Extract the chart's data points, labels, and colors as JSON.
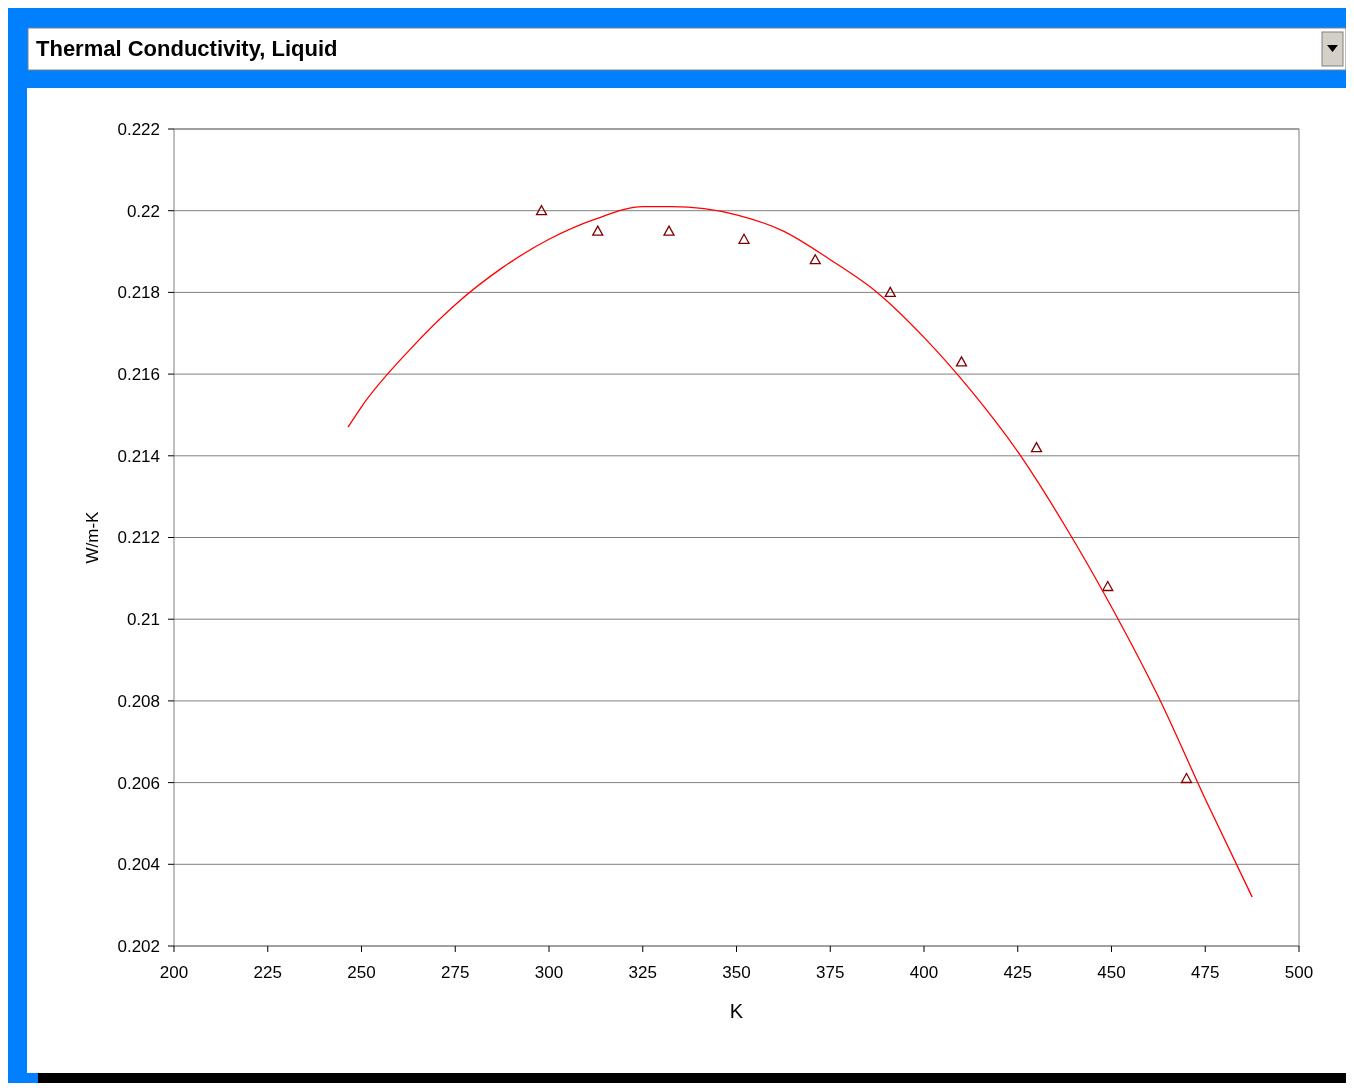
{
  "chart_data": {
    "type": "scatter",
    "title": "Thermal Conductivity, Liquid",
    "xlabel": "K",
    "ylabel": "W/m-K",
    "xlim": [
      200,
      500
    ],
    "xticks": [
      200,
      225,
      250,
      275,
      300,
      325,
      350,
      375,
      400,
      425,
      450,
      475,
      500
    ],
    "ylim": [
      0.202,
      0.222
    ],
    "yticks": [
      0.202,
      0.204,
      0.206,
      0.208,
      0.21,
      0.212,
      0.214,
      0.216,
      0.218,
      0.22,
      0.222
    ],
    "grid": "y",
    "series": [
      {
        "marker": "triangle",
        "color": "#800000",
        "x": [
          298,
          313,
          332,
          352,
          371,
          391,
          410,
          430,
          449,
          470
        ],
        "values": [
          0.22,
          0.2195,
          0.2195,
          0.2193,
          0.2188,
          0.218,
          0.2163,
          0.2142,
          0.2108,
          0.2061
        ]
      },
      {
        "type": "line",
        "marker": "none",
        "line_style": "solid",
        "color": "#ff0000",
        "x": [
          246.4,
          250,
          262.9,
          275,
          287.5,
          300,
          312.5,
          325,
          332.8,
          350,
          362.5,
          375,
          387.5,
          400,
          412.5,
          425,
          437.5,
          450,
          462.5,
          475,
          487.5
        ],
        "values": [
          0.2147,
          0.2152,
          0.2166,
          0.2177,
          0.2186,
          0.2193,
          0.2198,
          0.2201,
          0.2201,
          0.2199,
          0.2195,
          0.2188,
          0.218,
          0.2169,
          0.2156,
          0.2141,
          0.2123,
          0.2103,
          0.2081,
          0.2056,
          0.2032
        ]
      }
    ]
  }
}
